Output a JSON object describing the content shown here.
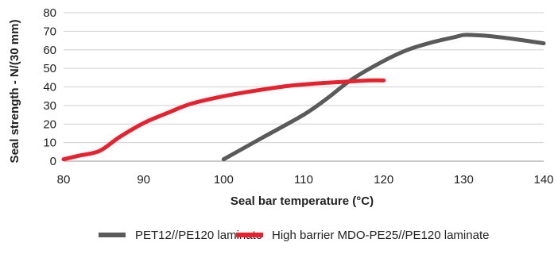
{
  "chart_data": {
    "type": "line",
    "title": "",
    "xlabel": "Seal bar temperature (°C)",
    "ylabel": "Seal strength - N/(30 mm)",
    "xlim": [
      80,
      140
    ],
    "ylim": [
      0,
      80
    ],
    "x_ticks": [
      80,
      90,
      100,
      110,
      120,
      130,
      140
    ],
    "y_ticks": [
      0,
      10,
      20,
      30,
      40,
      50,
      60,
      70,
      80
    ],
    "grid": "horizontal",
    "legend_position": "bottom",
    "series": [
      {
        "name": "PET12//PE120 laminate",
        "color": "#5a5a5a",
        "x": [
          100,
          105,
          110,
          113,
          116,
          120,
          123,
          126,
          129,
          130,
          131,
          133,
          136,
          140
        ],
        "y": [
          1,
          13,
          25,
          34,
          44,
          54,
          60,
          64,
          67,
          68,
          68,
          67.5,
          66,
          63.5
        ]
      },
      {
        "name": "High barrier MDO-PE25//PE120 laminate",
        "color": "#e8212e",
        "x": [
          80,
          82,
          84.5,
          87,
          90,
          93,
          96,
          100,
          104,
          108,
          112,
          116,
          118,
          120
        ],
        "y": [
          1,
          3,
          5.5,
          13,
          20.5,
          26,
          31,
          35,
          38,
          40.5,
          42,
          43,
          43.5,
          43.5
        ]
      }
    ]
  }
}
